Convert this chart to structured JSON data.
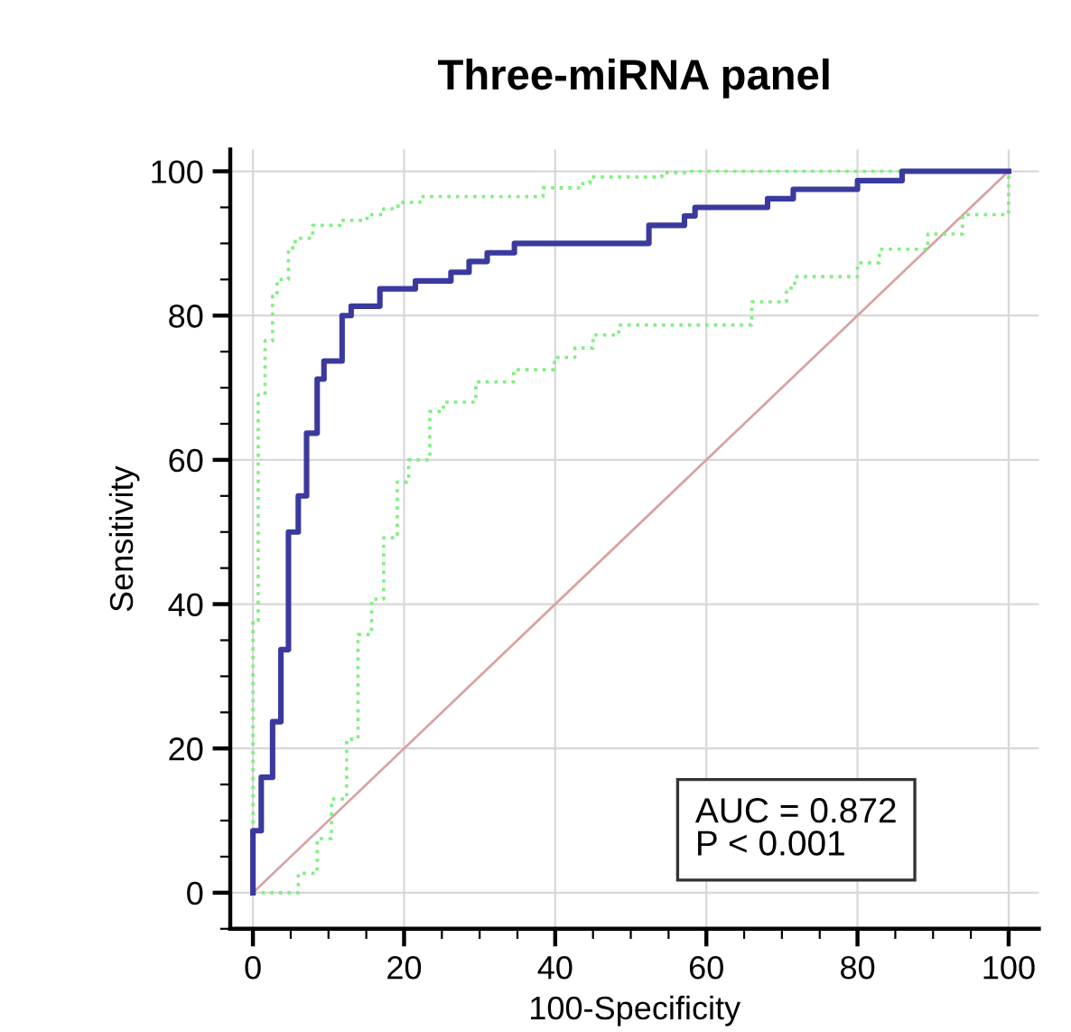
{
  "chart_data": {
    "type": "step",
    "title": "Three-miRNA panel",
    "xlabel": "100-Specificity",
    "ylabel": "Sensitivity",
    "xlim": [
      -3,
      104
    ],
    "ylim": [
      -5,
      103
    ],
    "xticks": [
      0,
      20,
      40,
      60,
      80,
      100
    ],
    "yticks": [
      0,
      20,
      40,
      60,
      80,
      100
    ],
    "grid": true,
    "annotations": [
      "AUC = 0.872",
      "P < 0.001"
    ],
    "series": [
      {
        "type": "line",
        "color": "#d9a3a3",
        "line_style": "solid",
        "x": [
          0,
          100
        ],
        "values": [
          0,
          100
        ]
      },
      {
        "color": "#7ef07e",
        "line_style": "dotted",
        "x": [
          0,
          0,
          0.7,
          1.6,
          2.6,
          3.2,
          4.7,
          5.6,
          7.9,
          11.5,
          15.1,
          17.3,
          19.2,
          22.1,
          38.4,
          43.1,
          44.6,
          54.1,
          57.5,
          100
        ],
        "values": [
          0,
          37.7,
          69,
          76.5,
          82.7,
          85,
          89.4,
          90.7,
          92.5,
          93.2,
          94,
          94.8,
          95.7,
          96.5,
          97.7,
          98.3,
          99.2,
          99.8,
          100,
          100
        ]
      },
      {
        "color": "#7ef07e",
        "line_style": "dotted",
        "x": [
          0,
          6,
          8.5,
          10.4,
          12.4,
          13.9,
          15.7,
          17.3,
          19.1,
          20.6,
          23.4,
          25.2,
          29.5,
          34.5,
          39.9,
          42.6,
          45,
          48.4,
          66,
          70.6,
          71.7,
          80,
          82.9,
          89.3,
          93.9,
          100
        ],
        "values": [
          0,
          2.7,
          7.5,
          13,
          21.3,
          35.8,
          40.7,
          49.2,
          56.9,
          60,
          66.7,
          68,
          70.8,
          72.5,
          74.2,
          75.5,
          77.3,
          78.7,
          81.9,
          83.8,
          85.4,
          87.3,
          89.2,
          91.3,
          94,
          100
        ]
      },
      {
        "color": "#3a3a9e",
        "line_style": "solid",
        "x": [
          0,
          0,
          1.1,
          2.6,
          3.7,
          4.7,
          6,
          7.1,
          8.5,
          9.4,
          11.8,
          13,
          16.8,
          21.5,
          26.2,
          28.6,
          31,
          34.6,
          52.4,
          57.1,
          58.5,
          68.1,
          71.5,
          80,
          85.9,
          100
        ],
        "values": [
          0,
          8.6,
          16,
          23.7,
          33.7,
          50,
          55,
          63.7,
          71.2,
          73.7,
          80,
          81.3,
          83.7,
          84.8,
          86,
          87.5,
          88.7,
          90,
          92.5,
          93.8,
          95,
          96.2,
          97.5,
          98.7,
          100,
          100
        ]
      }
    ]
  }
}
